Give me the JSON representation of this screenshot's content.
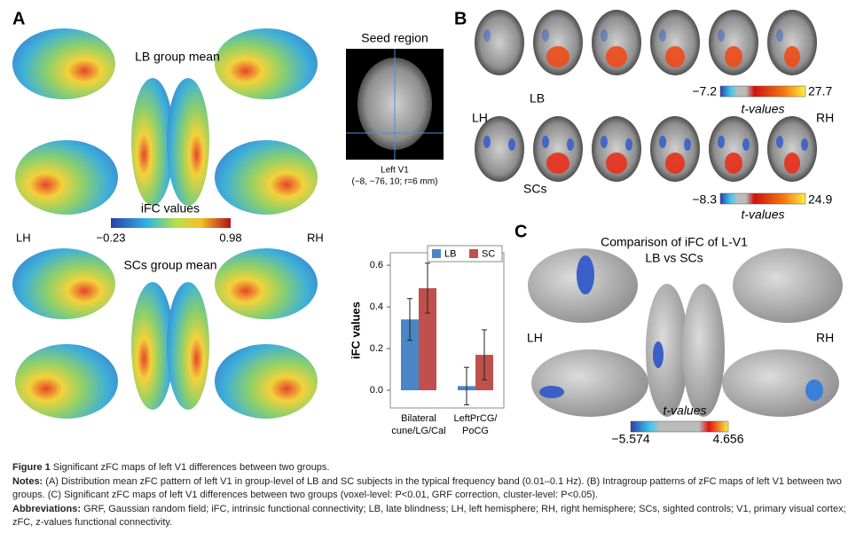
{
  "panel_a": {
    "label": "A",
    "lb_title": "LB group mean",
    "scs_title": "SCs  group mean",
    "colorbar_title": "iFC values",
    "colorbar_min": "−0.23",
    "colorbar_max": "0.98",
    "lh": "LH",
    "rh": "RH",
    "seed_title": "Seed region",
    "seed_caption_1": "Left V1",
    "seed_caption_2": "(−8, −76, 10; r=6 mm)"
  },
  "panel_b": {
    "label": "B",
    "lb": "LB",
    "scs": "SCs",
    "lh": "LH",
    "rh": "RH",
    "lb_min": "−7.2",
    "lb_max": "27.7",
    "scs_min": "−8.3",
    "scs_max": "24.9",
    "lb_axis": "t-values",
    "scs_axis": "t-values"
  },
  "chart_data": {
    "type": "bar",
    "ylabel": "iFC values",
    "categories": [
      [
        "Bilateral",
        "cune/LG/Cal"
      ],
      [
        "LeftPrCG/",
        "PoCG"
      ]
    ],
    "series": [
      {
        "name": "LB",
        "color": "#4a86c5",
        "values": [
          0.34,
          0.02
        ],
        "errors": [
          0.1,
          0.09
        ]
      },
      {
        "name": "SC",
        "color": "#c0504d",
        "values": [
          0.49,
          0.17
        ],
        "errors": [
          0.12,
          0.12
        ]
      }
    ],
    "ylim": [
      -0.085,
      0.66
    ],
    "yticks": [
      {
        "value": 0,
        "label": "0.0"
      },
      0.2,
      0.4,
      0.6
    ],
    "legend": "top-right"
  },
  "panel_c": {
    "label": "C",
    "title_1": "Comparison of iFC of L-V1",
    "title_2": "LB vs SCs",
    "lh": "LH",
    "rh": "RH",
    "axis": "t-values",
    "min": "−5.574",
    "max": "4.656"
  },
  "caption": {
    "figure_label": "Figure 1",
    "figure_title": "Significant zFC maps of left V1 differences between two groups.",
    "notes_label": "Notes:",
    "notes_text": "(A) Distribution mean zFC pattern of left V1 in group-level of LB and SC subjects in the typical frequency band (0.01–0.1 Hz). (B) Intragroup patterns of zFC maps of left V1 between two groups. (C) Significant zFC maps of left V1 differences between two groups (voxel-level: P<0.01, GRF correction, cluster-level: P<0.05).",
    "abbreviations_label": "Abbreviations:",
    "abbreviations_text": "GRF, Gaussian random field; iFC, intrinsic functional connectivity; LB, late blindness; LH, left hemisphere; RH, right hemisphere; SCs, sighted controls; V1, primary visual cortex; zFC, z-values functional connectivity."
  }
}
